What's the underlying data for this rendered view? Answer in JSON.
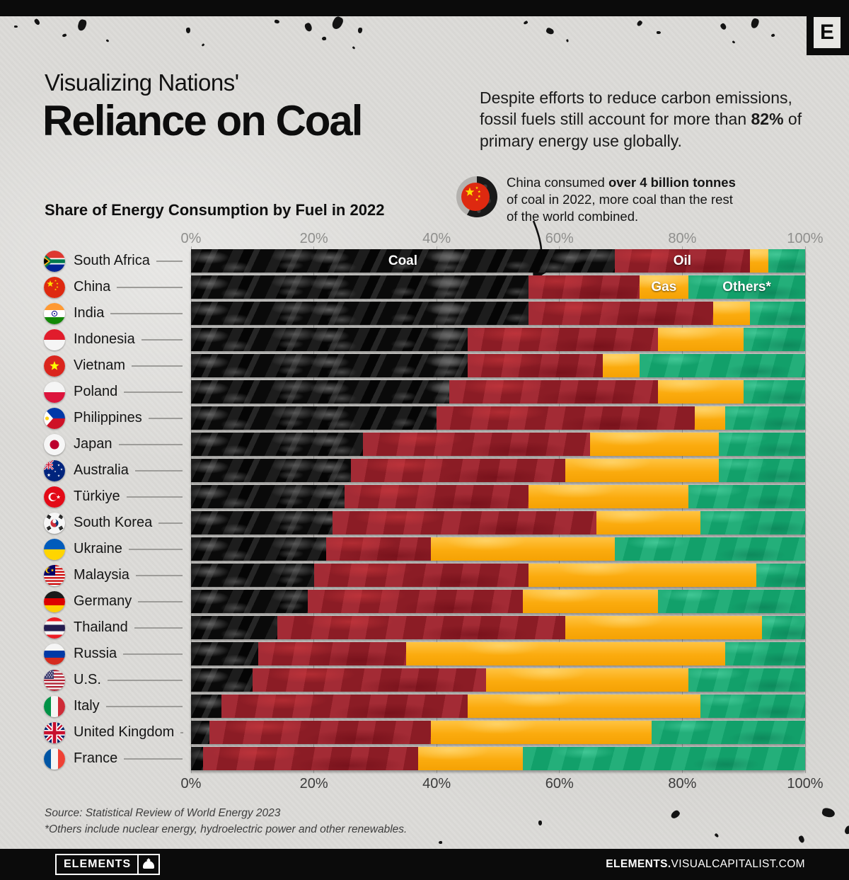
{
  "header": {
    "logo_letter": "E",
    "title_line1": "Visualizing Nations'",
    "title_line2": "Reliance on Coal",
    "intro_before": "Despite efforts to reduce carbon emissions, fossil fuels still account for more than ",
    "intro_bold": "82%",
    "intro_after": " of primary energy use globally."
  },
  "annotation": {
    "icon": "china-coal-donut-icon",
    "text_before": "China consumed ",
    "text_bold": "over 4 billion tonnes",
    "text_after": " of coal in 2022, more coal than the rest of the world combined."
  },
  "chart_data": {
    "type": "bar",
    "subtype": "horizontal-stacked-100pct",
    "title": "Share of Energy Consumption by Fuel in 2022",
    "xlabel": "Share of energy consumption (%)",
    "x_ticks": [
      "0%",
      "20%",
      "40%",
      "60%",
      "80%",
      "100%"
    ],
    "xlim": [
      0,
      100
    ],
    "grid": true,
    "legend_position": "inline-on-bars",
    "series_labels": [
      "Coal",
      "Oil",
      "Gas",
      "Others*"
    ],
    "colors": {
      "coal": "#0e0e0e",
      "oil": "#9e202a",
      "gas": "#fbab0e",
      "others": "#13a970"
    },
    "rows": [
      {
        "country": "South Africa",
        "flag": "flag-south-africa",
        "coal": 69,
        "oil": 22,
        "gas": 3,
        "others": 6,
        "labels": {
          "coal": "Coal",
          "oil": "Oil"
        }
      },
      {
        "country": "China",
        "flag": "flag-china",
        "coal": 55,
        "oil": 18,
        "gas": 8,
        "others": 19,
        "labels": {
          "gas": "Gas",
          "others": "Others*"
        }
      },
      {
        "country": "India",
        "flag": "flag-india",
        "coal": 55,
        "oil": 30,
        "gas": 6,
        "others": 9
      },
      {
        "country": "Indonesia",
        "flag": "flag-indonesia",
        "coal": 45,
        "oil": 31,
        "gas": 14,
        "others": 10
      },
      {
        "country": "Vietnam",
        "flag": "flag-vietnam",
        "coal": 45,
        "oil": 22,
        "gas": 6,
        "others": 27
      },
      {
        "country": "Poland",
        "flag": "flag-poland",
        "coal": 42,
        "oil": 34,
        "gas": 14,
        "others": 10
      },
      {
        "country": "Philippines",
        "flag": "flag-philippines",
        "coal": 40,
        "oil": 42,
        "gas": 5,
        "others": 13
      },
      {
        "country": "Japan",
        "flag": "flag-japan",
        "coal": 28,
        "oil": 37,
        "gas": 21,
        "others": 14
      },
      {
        "country": "Australia",
        "flag": "flag-australia",
        "coal": 26,
        "oil": 35,
        "gas": 25,
        "others": 14
      },
      {
        "country": "Türkiye",
        "flag": "flag-turkiye",
        "coal": 25,
        "oil": 30,
        "gas": 26,
        "others": 19
      },
      {
        "country": "South Korea",
        "flag": "flag-south-korea",
        "coal": 23,
        "oil": 43,
        "gas": 17,
        "others": 17
      },
      {
        "country": "Ukraine",
        "flag": "flag-ukraine",
        "coal": 22,
        "oil": 17,
        "gas": 30,
        "others": 31
      },
      {
        "country": "Malaysia",
        "flag": "flag-malaysia",
        "coal": 20,
        "oil": 35,
        "gas": 37,
        "others": 8
      },
      {
        "country": "Germany",
        "flag": "flag-germany",
        "coal": 19,
        "oil": 35,
        "gas": 22,
        "others": 24
      },
      {
        "country": "Thailand",
        "flag": "flag-thailand",
        "coal": 14,
        "oil": 47,
        "gas": 32,
        "others": 7
      },
      {
        "country": "Russia",
        "flag": "flag-russia",
        "coal": 11,
        "oil": 24,
        "gas": 52,
        "others": 13
      },
      {
        "country": "U.S.",
        "flag": "flag-us",
        "coal": 10,
        "oil": 38,
        "gas": 33,
        "others": 19
      },
      {
        "country": "Italy",
        "flag": "flag-italy",
        "coal": 5,
        "oil": 40,
        "gas": 38,
        "others": 17
      },
      {
        "country": "United Kingdom",
        "flag": "flag-united-kingdom",
        "coal": 3,
        "oil": 36,
        "gas": 36,
        "others": 25
      },
      {
        "country": "France",
        "flag": "flag-france",
        "coal": 2,
        "oil": 35,
        "gas": 17,
        "others": 46
      }
    ]
  },
  "source": {
    "line1": "Source: Statistical Review of World Energy 2023",
    "line2": "*Others include nuclear energy, hydroelectric power and other renewables."
  },
  "footer": {
    "logo_text": "ELEMENTS",
    "site_bold": "ELEMENTS.",
    "site_rest": "VISUALCAPITALIST.COM"
  }
}
